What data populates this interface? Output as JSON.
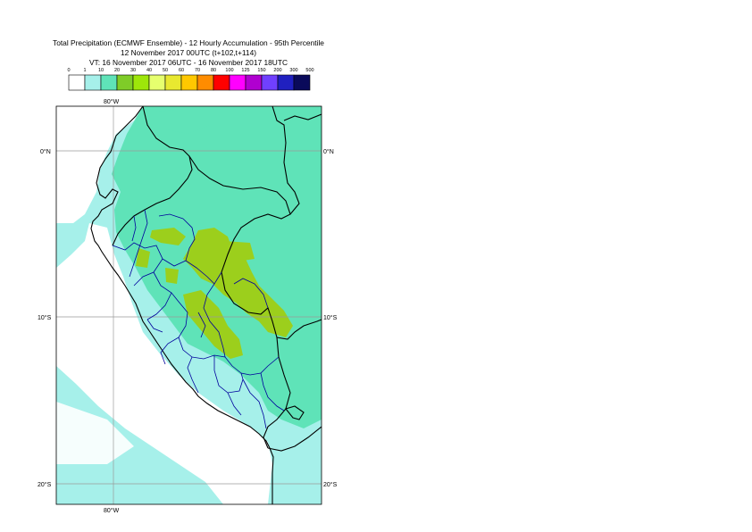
{
  "title": {
    "line1": "Total Precipitation (ECMWF Ensemble) - 12 Hourly Accumulation - 95th Percentile",
    "line2": "12 November 2017 00UTC (t+102,t+114)",
    "line3": "VT: 16 November 2017 06UTC - 16 November 2017 18UTC"
  },
  "legend": {
    "levels": [
      "0",
      "1",
      "10",
      "20",
      "30",
      "40",
      "50",
      "60",
      "70",
      "80",
      "100",
      "125",
      "150",
      "200",
      "300",
      "500"
    ],
    "colors": [
      "#ffffff",
      "#a6f0ea",
      "#5fe3b8",
      "#7fcc28",
      "#9ee60a",
      "#e6ff6e",
      "#e8e830",
      "#ffc800",
      "#ff8c00",
      "#ff0000",
      "#ff00ff",
      "#b000d0",
      "#7040ff",
      "#2020c0",
      "#0a0a5a"
    ]
  },
  "axes": {
    "lon_top": "80°W",
    "lon_bottom": "80°W",
    "lat_labels": [
      "0°N",
      "10°S",
      "20°S"
    ]
  },
  "map_colors": {
    "sea": "#a6f0ea",
    "land_low": "#5fe3b8",
    "heavy": "#9ccf1c",
    "dry": "#ffffff",
    "coast": "#000000",
    "admin": "#00009c",
    "grid": "#9a9a9a"
  }
}
